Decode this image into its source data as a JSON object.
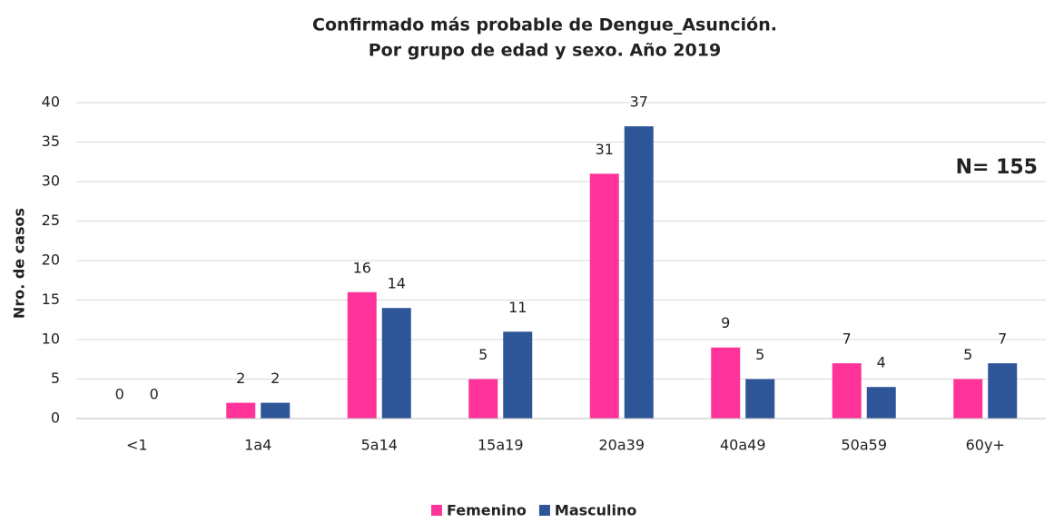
{
  "chart_data": {
    "type": "bar",
    "title": "Confirmado más probable de Dengue_Asunción.",
    "subtitle": "Por grupo de edad y sexo. Año 2019",
    "y_label": "Nro. de casos",
    "annotation": "N= 155",
    "categories": [
      "<1",
      "1a4",
      "5a14",
      "15a19",
      "20a39",
      "40a49",
      "50a59",
      "60y+"
    ],
    "series": [
      {
        "name": "Femenino",
        "color": "#ff3399",
        "values": [
          0,
          2,
          16,
          5,
          31,
          9,
          7,
          5
        ]
      },
      {
        "name": "Masculino",
        "color": "#2e5597",
        "values": [
          0,
          2,
          14,
          11,
          37,
          5,
          4,
          7
        ]
      }
    ],
    "ylim": [
      0,
      40
    ],
    "yticks": [
      0,
      5,
      10,
      15,
      20,
      25,
      30,
      35,
      40
    ],
    "grid": true,
    "legend": "bottom"
  }
}
